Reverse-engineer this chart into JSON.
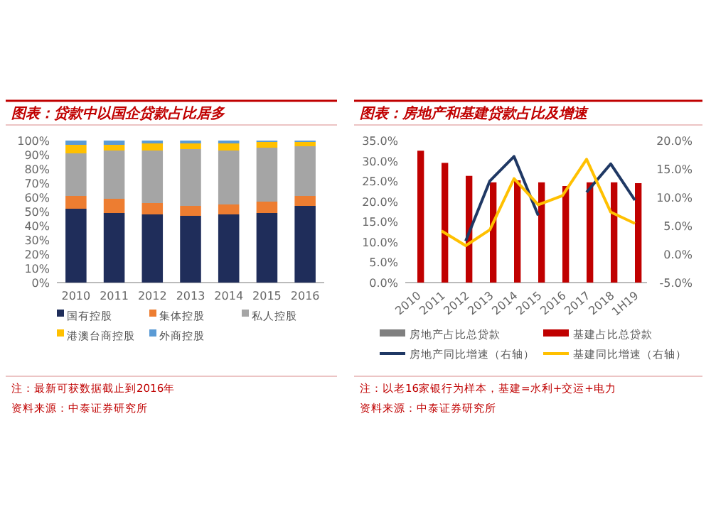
{
  "chart_data": [
    {
      "type": "bar",
      "stacked": true,
      "title": "图表：贷款中以国企贷款占比居多",
      "categories": [
        "2010",
        "2011",
        "2012",
        "2013",
        "2014",
        "2015",
        "2016"
      ],
      "series": [
        {
          "name": "国有控股",
          "color": "#1f2d5a",
          "values": [
            52,
            49,
            48,
            47,
            48,
            49,
            54
          ]
        },
        {
          "name": "集体控股",
          "color": "#ed7d31",
          "values": [
            9,
            10,
            8,
            7,
            7,
            8,
            7
          ]
        },
        {
          "name": "私人控股",
          "color": "#a5a5a5",
          "values": [
            30,
            34,
            37,
            40,
            38,
            38,
            35
          ]
        },
        {
          "name": "港澳台商控股",
          "color": "#ffc000",
          "values": [
            6,
            4,
            5,
            4,
            5,
            4,
            3
          ]
        },
        {
          "name": "外商控股",
          "color": "#5b9bd5",
          "values": [
            3,
            3,
            2,
            2,
            2,
            1,
            1
          ]
        }
      ],
      "ylim": [
        0,
        100
      ],
      "yticks": [
        {
          "value": 0,
          "label": "0%"
        },
        {
          "value": 10,
          "label": "10%"
        },
        {
          "value": 20,
          "label": "20%"
        },
        {
          "value": 30,
          "label": "30%"
        },
        {
          "value": 40,
          "label": "40%"
        },
        {
          "value": 50,
          "label": "50%"
        },
        {
          "value": 60,
          "label": "60%"
        },
        {
          "value": 70,
          "label": "70%"
        },
        {
          "value": 80,
          "label": "80%"
        },
        {
          "value": 90,
          "label": "90%"
        },
        {
          "value": 100,
          "label": "100%"
        }
      ],
      "legend": "bottom",
      "annotations": [
        "注：最新可获数据截止到2016年",
        "资料来源：中泰证券研究所"
      ]
    },
    {
      "type": "bar",
      "title": "图表：房地产和基建贷款占比及增速",
      "categories": [
        "2010",
        "2011",
        "2012",
        "2013",
        "2014",
        "2015",
        "2016",
        "2017",
        "2018",
        "1H19"
      ],
      "series": [
        {
          "name": "房地产占比总贷款",
          "color": "#808080",
          "values": [
            null,
            null,
            null,
            null,
            null,
            null,
            null,
            null,
            null,
            null
          ]
        },
        {
          "name": "基建占比总贷款",
          "color": "#c00000",
          "values": [
            32.5,
            29.5,
            26.3,
            24.7,
            25.2,
            24.7,
            23.8,
            24.7,
            24.7,
            24.5
          ]
        },
        {
          "name": "房地产同比增速（右轴）",
          "type": "line",
          "axis": "y2",
          "color": "#1f3864",
          "values": [
            null,
            null,
            2.3,
            12.9,
            17.2,
            6.8,
            null,
            10.9,
            15.9,
            9.5
          ]
        },
        {
          "name": "基建同比增速（右轴）",
          "type": "line",
          "axis": "y2",
          "color": "#ffc000",
          "values": [
            null,
            4.1,
            1.5,
            4.3,
            13.3,
            8.7,
            10.3,
            16.7,
            7.4,
            5.4
          ]
        }
      ],
      "ylim": [
        0,
        35
      ],
      "yticks": [
        {
          "value": 0,
          "label": "0.0%"
        },
        {
          "value": 5,
          "label": "5.0%"
        },
        {
          "value": 10,
          "label": "10.0%"
        },
        {
          "value": 15,
          "label": "15.0%"
        },
        {
          "value": 20,
          "label": "20.0%"
        },
        {
          "value": 25,
          "label": "25.0%"
        },
        {
          "value": 30,
          "label": "30.0%"
        },
        {
          "value": 35,
          "label": "35.0%"
        }
      ],
      "y2lim": [
        -5,
        20
      ],
      "y2ticks": [
        {
          "value": -5,
          "label": "-5.0%"
        },
        {
          "value": 0,
          "label": "0.0%"
        },
        {
          "value": 5,
          "label": "5.0%"
        },
        {
          "value": 10,
          "label": "10.0%"
        },
        {
          "value": 15,
          "label": "15.0%"
        },
        {
          "value": 20,
          "label": "20.0%"
        }
      ],
      "legend": "bottom",
      "annotations": [
        "注：以老16家银行为样本，基建=水利+交运+电力",
        "资料来源：中泰证券研究所"
      ]
    }
  ]
}
